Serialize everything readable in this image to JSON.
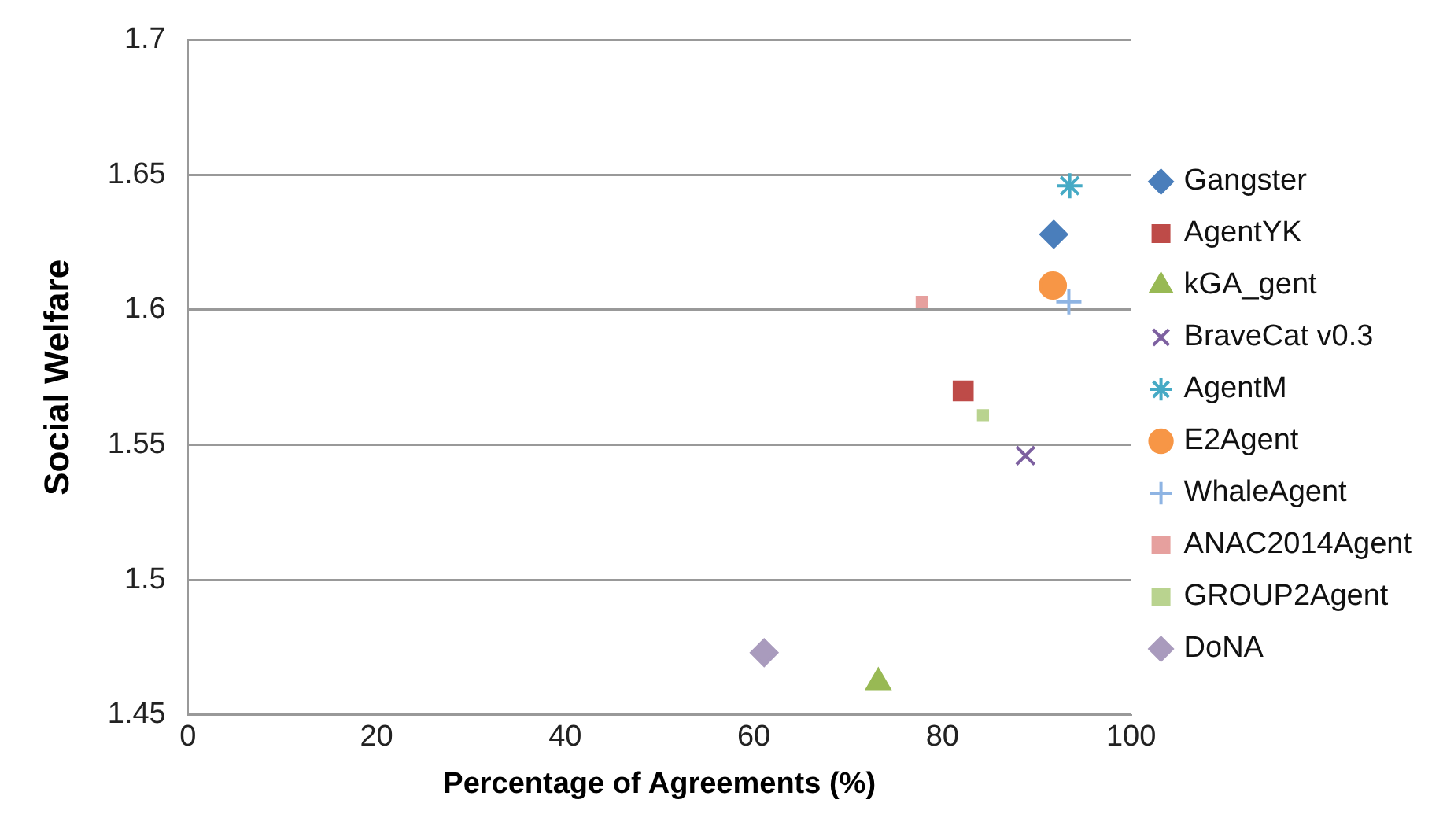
{
  "chart_data": {
    "type": "scatter",
    "xlabel": "Percentage of Agreements (%)",
    "ylabel": "Social Welfare",
    "xlim": [
      0,
      100
    ],
    "xticks": [
      0,
      20,
      40,
      60,
      80,
      100
    ],
    "ylim": [
      1.45,
      1.7
    ],
    "yticks": [
      1.45,
      1.5,
      1.55,
      1.6,
      1.65,
      1.7
    ],
    "grid": "y",
    "legend": "right",
    "series": [
      {
        "name": "Gangster",
        "color": "#4a7ebb",
        "marker": "diamond",
        "x": [
          91.8
        ],
        "values": [
          1.628
        ]
      },
      {
        "name": "AgentYK",
        "color": "#be4b48",
        "marker": "square",
        "x": [
          82.2
        ],
        "values": [
          1.57
        ]
      },
      {
        "name": "kGA_gent",
        "color": "#98b954",
        "marker": "triangle",
        "x": [
          73.2
        ],
        "values": [
          1.462
        ]
      },
      {
        "name": "BraveCat v0.3",
        "color": "#7d60a0",
        "marker": "cross",
        "x": [
          88.8
        ],
        "values": [
          1.546
        ]
      },
      {
        "name": "AgentM",
        "color": "#46aac5",
        "marker": "cross",
        "x": [
          93.5
        ],
        "values": [
          1.646
        ]
      },
      {
        "name": "E2Agent",
        "color": "#f79646",
        "marker": "circle",
        "x": [
          91.7
        ],
        "values": [
          1.609
        ]
      },
      {
        "name": "WhaleAgent",
        "color": "#8eb4e3",
        "marker": "cross",
        "x": [
          93.4
        ],
        "values": [
          1.603
        ]
      },
      {
        "name": "ANAC2014Agent",
        "color": "#e6a09e",
        "marker": "square",
        "x": [
          77.8
        ],
        "values": [
          1.603
        ]
      },
      {
        "name": "GROUP2Agent",
        "color": "#b9d38f",
        "marker": "square",
        "x": [
          84.3
        ],
        "values": [
          1.561
        ]
      },
      {
        "name": "DoNA",
        "color": "#a99bbd",
        "marker": "diamond",
        "x": [
          61.1
        ],
        "values": [
          1.473
        ]
      }
    ]
  }
}
